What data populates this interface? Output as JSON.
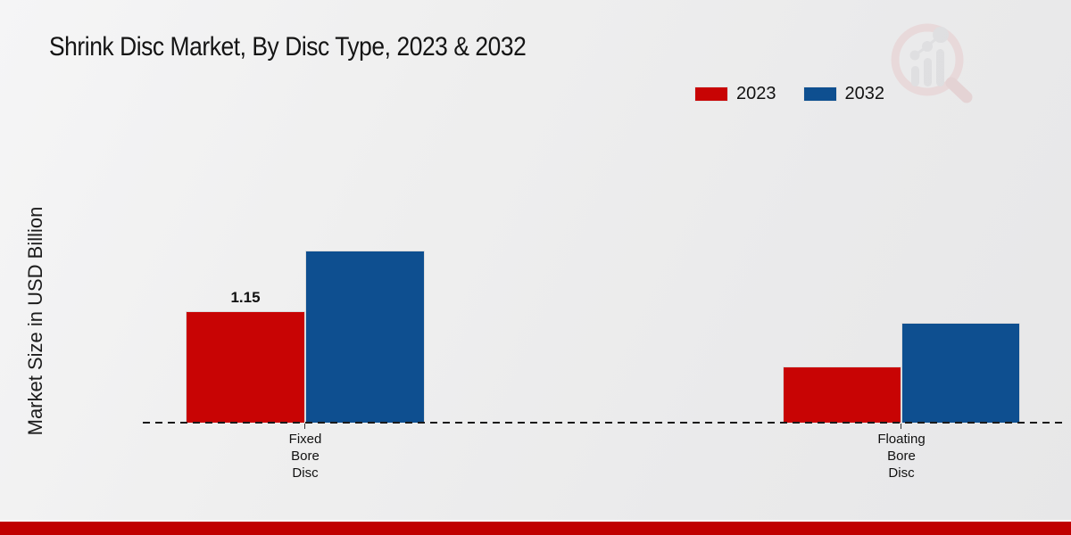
{
  "chart_data": {
    "type": "bar",
    "title": "Shrink Disc Market, By Disc Type, 2023 & 2032",
    "ylabel": "Market Size in USD Billion",
    "xlabel": "",
    "categories": [
      "Fixed Bore Disc",
      "Floating Bore Disc"
    ],
    "category_lines": [
      [
        "Fixed",
        "Bore",
        "Disc"
      ],
      [
        "Floating",
        "Bore",
        "Disc"
      ]
    ],
    "series": [
      {
        "name": "2023",
        "color": "#c80404",
        "values": [
          1.15,
          0.58
        ]
      },
      {
        "name": "2032",
        "color": "#0e4f90",
        "values": [
          1.78,
          1.03
        ]
      }
    ],
    "data_labels": [
      {
        "series": "2023",
        "category": "Fixed Bore Disc",
        "text": "1.15"
      }
    ],
    "ylim": [
      0,
      2.2
    ],
    "grid": false,
    "legend_position": "top-right",
    "baseline_style": "dashed"
  },
  "branding": {
    "logo_icon": "magnifier-bar-chart-watermark",
    "accent_bar_color": "#c00000"
  }
}
